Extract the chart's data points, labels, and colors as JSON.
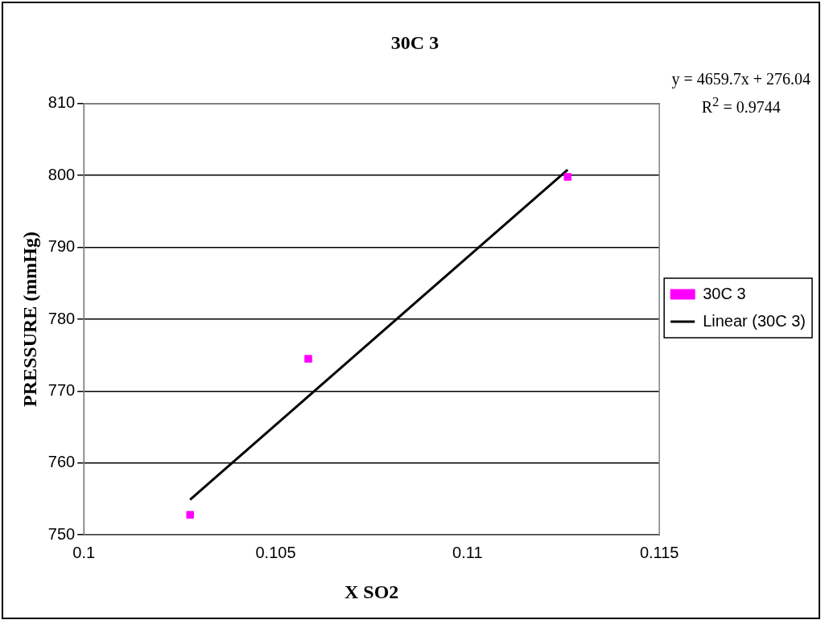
{
  "chart_data": {
    "type": "scatter",
    "title": "30C 3",
    "xlabel": "X SO2",
    "ylabel": "PRESSURE (mmHg)",
    "xlim": [
      0.1,
      0.115
    ],
    "xticks": [
      0.1,
      0.105,
      0.11,
      0.115
    ],
    "ylim": [
      750,
      810
    ],
    "yticks": [
      750,
      760,
      770,
      780,
      790,
      800,
      810
    ],
    "grid": "y",
    "legend": "right",
    "marker": "square",
    "annotations": [
      "y = 4659.7x + 276.04",
      "R$^{2}$ = 0.9744"
    ],
    "series": [
      {
        "name": "30C 3",
        "color": "#ff00ff",
        "x": [
          0.10277,
          0.10585,
          0.11261
        ],
        "values": [
          752.8,
          774.5,
          799.8
        ]
      },
      {
        "name": "Linear (30C 3)",
        "type": "line",
        "marker": "none",
        "color": "#000000",
        "x": [
          0.10277,
          0.11261
        ],
        "values": [
          754.9,
          800.8
        ]
      }
    ]
  }
}
